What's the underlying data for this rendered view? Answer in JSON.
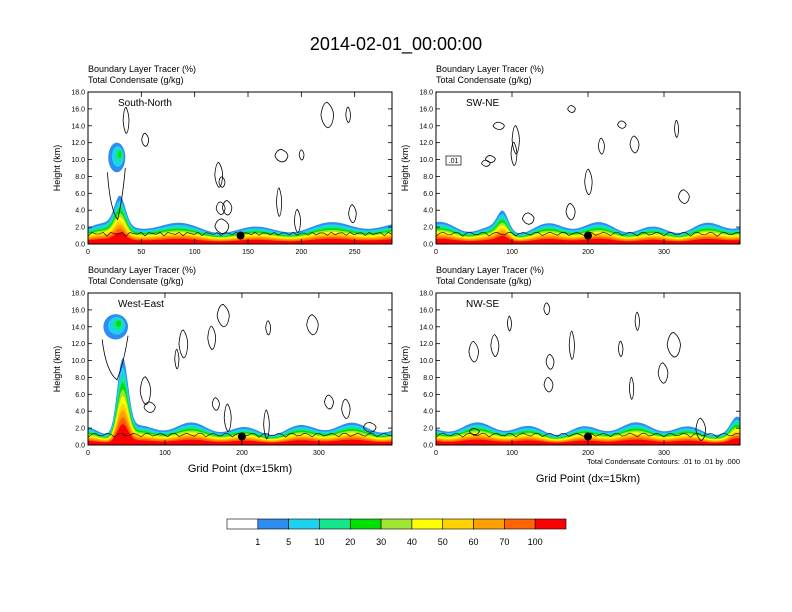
{
  "title": "2014-02-01_00:00:00",
  "panel_header": {
    "line1": "Boundary Layer Tracer   (%)",
    "line2": "Total Condensate   (g/kg)"
  },
  "colors": {
    "contour": "#000000",
    "levels": [
      "#ffffff",
      "#2f8cf0",
      "#1cd2f0",
      "#14e68c",
      "#00e100",
      "#a0e632",
      "#ffff00",
      "#ffd200",
      "#ffa000",
      "#ff6400",
      "#ff0000"
    ]
  },
  "colorbar": {
    "labels": [
      "1",
      "5",
      "10",
      "20",
      "30",
      "40",
      "50",
      "60",
      "70",
      "100"
    ],
    "colors": [
      "#ffffff",
      "#2f8cf0",
      "#1cd2f0",
      "#14e68c",
      "#00e100",
      "#a0e632",
      "#ffff00",
      "#ffd200",
      "#ffa000",
      "#ff6400",
      "#ff0000"
    ]
  },
  "footnote": "Total Condensate Contours: .01 to .01 by .000",
  "xlabel": "Grid Point (dx=15km)",
  "ylabel": "Height (km)",
  "chart_data": [
    {
      "type": "heatmap",
      "name": "South-North",
      "xlim": [
        0,
        285
      ],
      "ylim": [
        0,
        18
      ],
      "xticks": [
        0,
        50,
        100,
        150,
        200,
        250
      ],
      "yticks": [
        "0.0",
        "2.0",
        "4.0",
        "6.0",
        "8.0",
        "10.0",
        "12.0",
        "14.0",
        "16.0",
        "18.0"
      ],
      "xlabel": "",
      "ylabel": "Height (km)",
      "contour_label": "",
      "marker": {
        "x": 143,
        "y": 1.0
      },
      "peak": {
        "x": 30,
        "height": 4.2
      },
      "cloud_blob": {
        "x": [
          19,
          35
        ],
        "y": [
          8.5,
          12.0
        ]
      }
    },
    {
      "type": "heatmap",
      "name": "SW-NE",
      "xlim": [
        0,
        400
      ],
      "ylim": [
        0,
        18
      ],
      "xticks": [
        0,
        100,
        200,
        300
      ],
      "yticks": [
        "0.0",
        "2.0",
        "4.0",
        "6.0",
        "8.0",
        "10.0",
        "12.0",
        "14.0",
        "16.0",
        "18.0"
      ],
      "xlabel": "",
      "ylabel": "Height (km)",
      "contour_label": ".01",
      "marker": {
        "x": 200,
        "y": 1.0
      },
      "peak": {
        "x": 88,
        "height": 3.2
      }
    },
    {
      "type": "heatmap",
      "name": "West-East",
      "xlim": [
        0,
        395
      ],
      "ylim": [
        0,
        18
      ],
      "xticks": [
        0,
        100,
        200,
        300
      ],
      "yticks": [
        "0.0",
        "2.0",
        "4.0",
        "6.0",
        "8.0",
        "10.0",
        "12.0",
        "14.0",
        "16.0",
        "18.0"
      ],
      "xlabel": "Grid Point (dx=15km)",
      "ylabel": "Height (km)",
      "contour_label": "",
      "marker": {
        "x": 200,
        "y": 1.0
      },
      "peak": {
        "x": 45,
        "height": 8.5
      },
      "cloud_blob": {
        "x": [
          20,
          52
        ],
        "y": [
          12.5,
          15.5
        ]
      }
    },
    {
      "type": "heatmap",
      "name": "NW-SE",
      "xlim": [
        0,
        400
      ],
      "ylim": [
        0,
        18
      ],
      "xticks": [
        0,
        100,
        200,
        300
      ],
      "yticks": [
        "0.0",
        "2.0",
        "4.0",
        "6.0",
        "8.0",
        "10.0",
        "12.0",
        "14.0",
        "16.0",
        "18.0"
      ],
      "xlabel": "Grid Point (dx=15km)",
      "ylabel": "Height (km)",
      "contour_label": "",
      "marker": {
        "x": 200,
        "y": 1.0
      },
      "peak": {
        "x": 395,
        "height": 2.5
      }
    }
  ]
}
